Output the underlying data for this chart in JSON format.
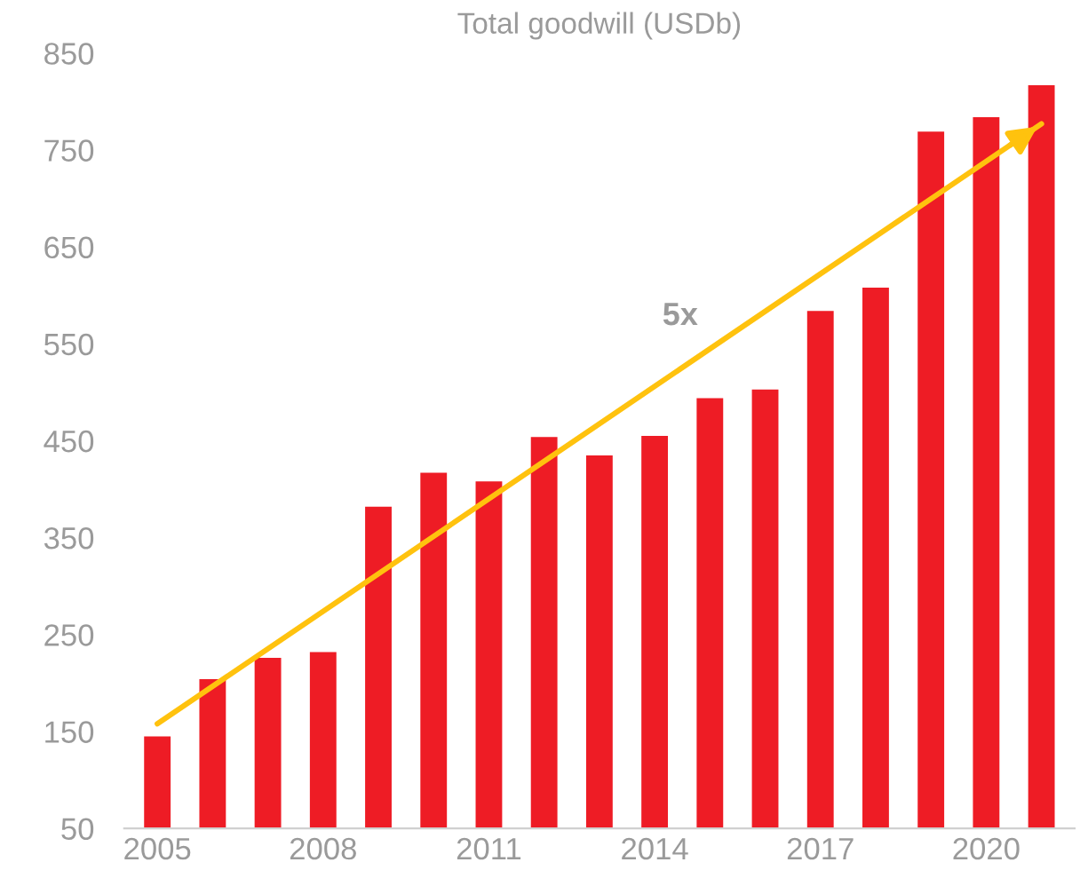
{
  "chart_data": {
    "type": "bar",
    "title": "Total goodwill (USDb)",
    "categories": [
      "2005",
      null,
      null,
      "2008",
      null,
      null,
      "2011",
      null,
      null,
      "2014",
      null,
      null,
      "2017",
      null,
      null,
      "2020",
      null
    ],
    "series": [
      {
        "type": "bar",
        "color": "#ee1c25",
        "values": [
          145,
          204,
          226,
          232,
          382,
          417,
          408,
          454,
          435,
          455,
          494,
          503,
          584,
          608,
          769,
          784,
          817
        ]
      },
      {
        "type": "line",
        "color": "#ffc20e",
        "values": [
          158,
          null,
          null,
          null,
          null,
          null,
          null,
          null,
          null,
          null,
          null,
          null,
          null,
          null,
          null,
          null,
          777
        ]
      }
    ],
    "annotations": [
      "5x"
    ],
    "ylim": [
      50,
      850
    ],
    "yticks": [
      50,
      150,
      250,
      350,
      450,
      550,
      650,
      750,
      850
    ],
    "grid": false,
    "legend": false
  }
}
